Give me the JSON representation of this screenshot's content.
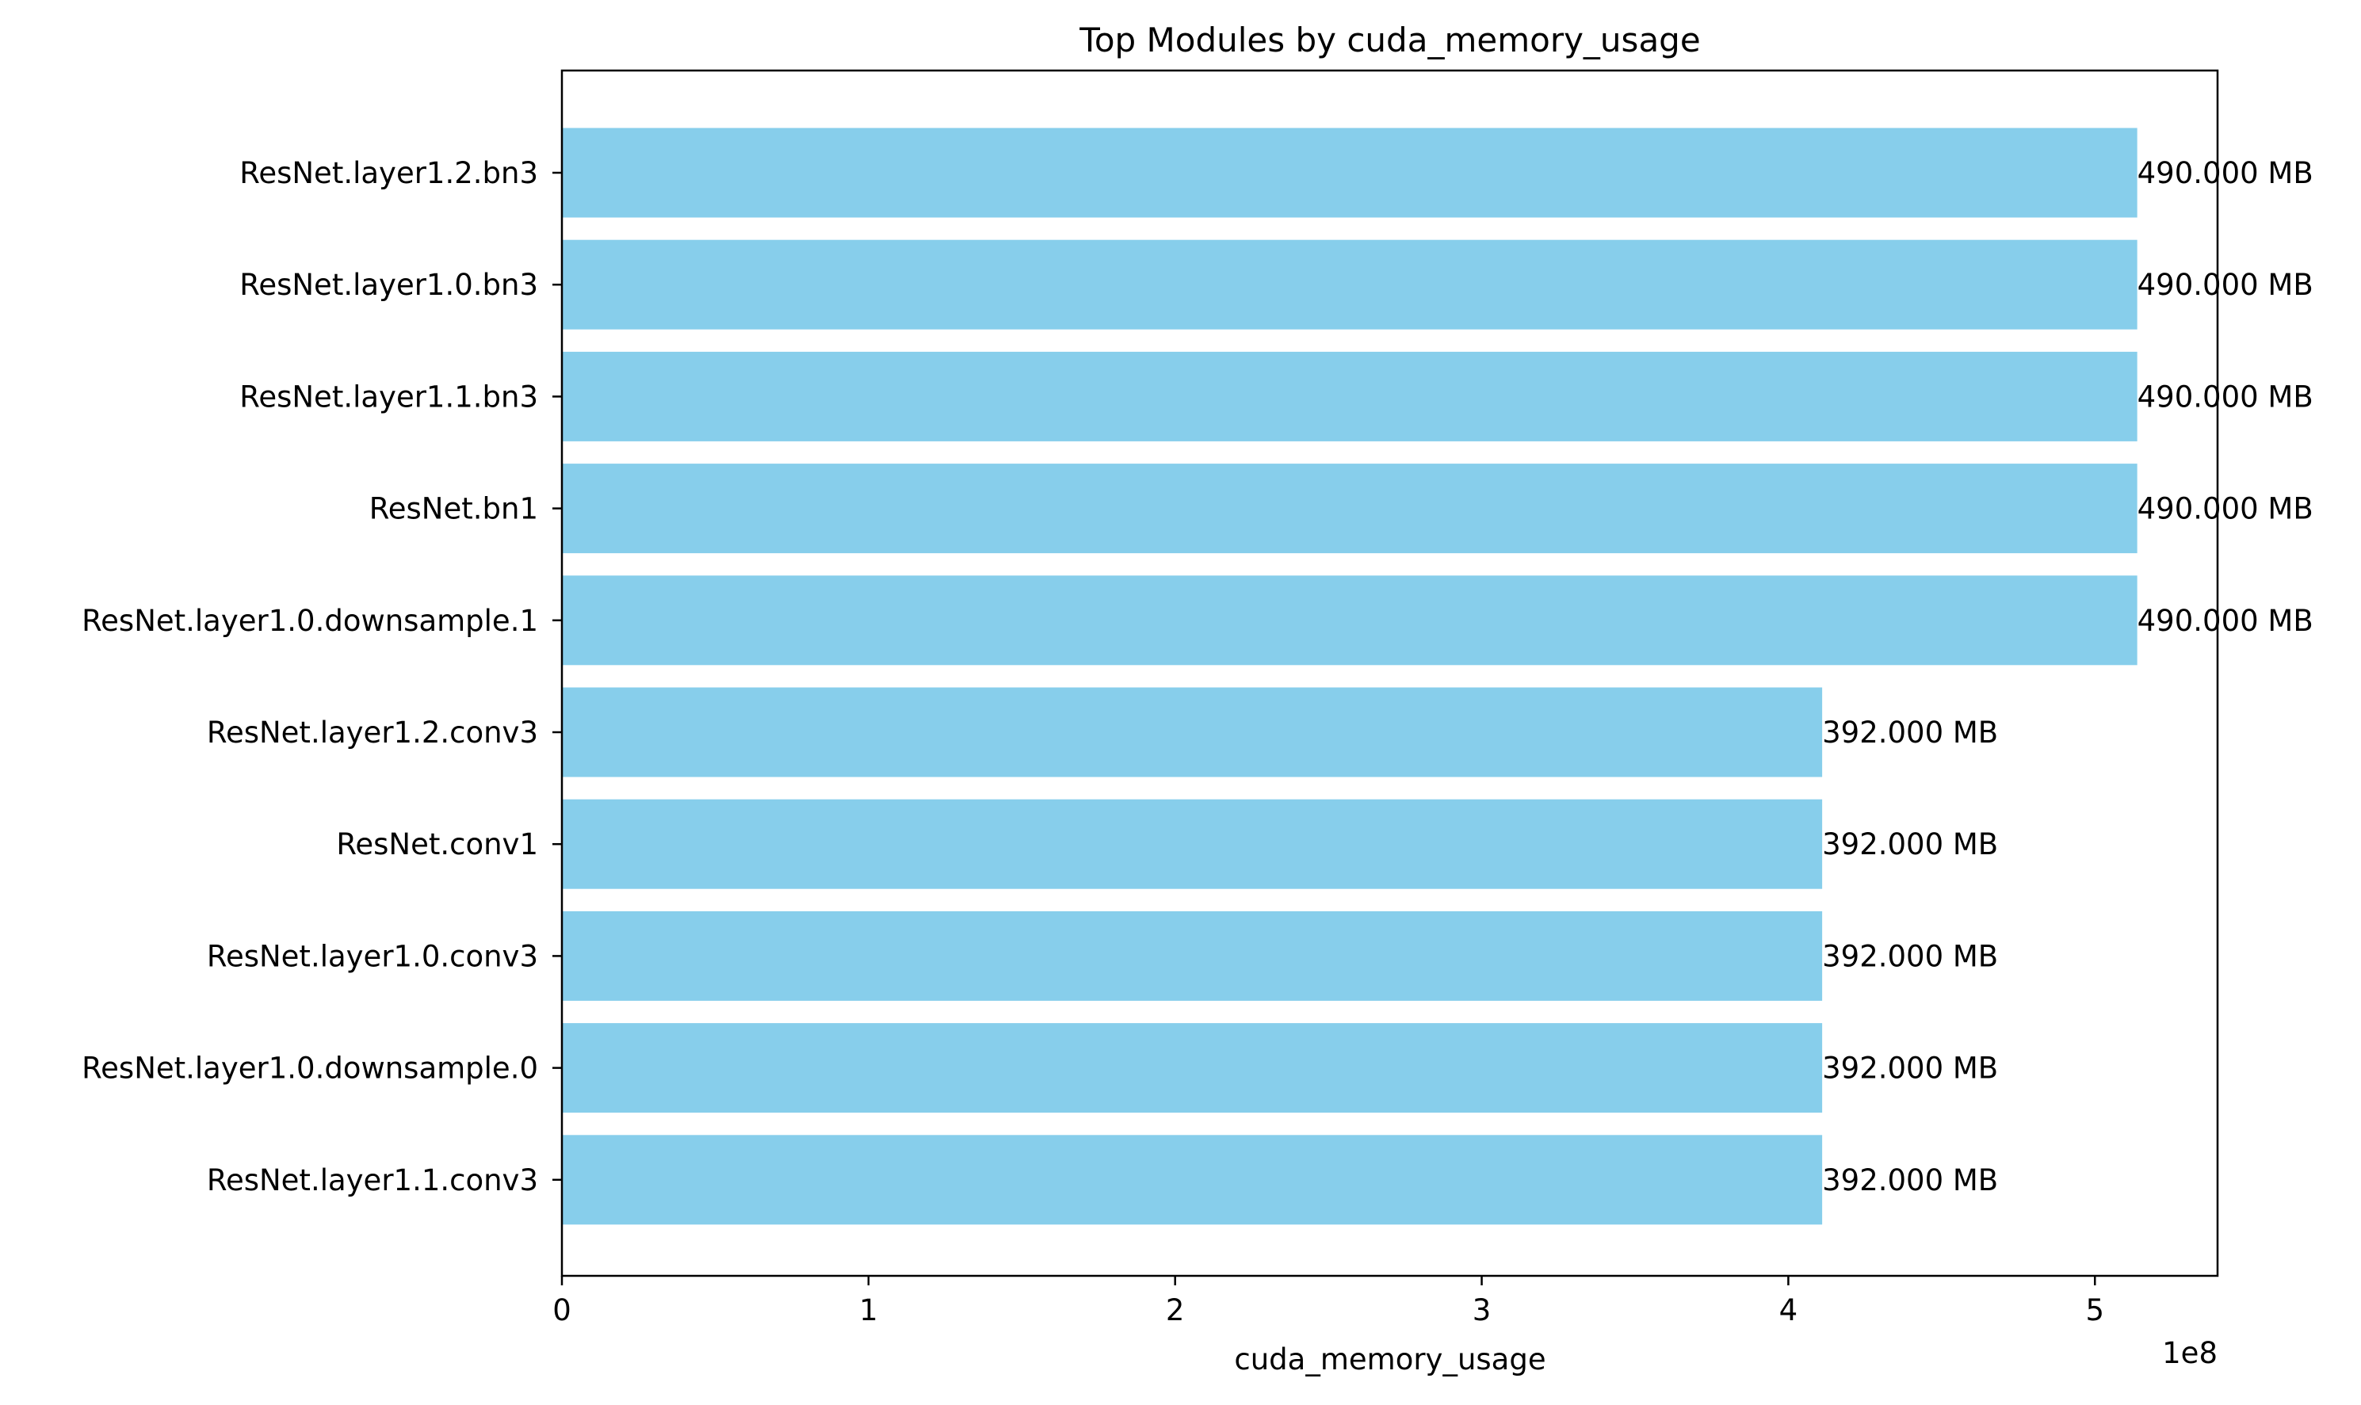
{
  "chart_data": {
    "type": "bar",
    "orientation": "horizontal",
    "title": "Top Modules by cuda_memory_usage",
    "xlabel": "cuda_memory_usage",
    "ylabel": "",
    "x_offset_label": "1e8",
    "xlim": [
      0,
      540000000
    ],
    "xticks": [
      0,
      100000000,
      200000000,
      300000000,
      400000000,
      500000000
    ],
    "xtick_labels": [
      "0",
      "1",
      "2",
      "3",
      "4",
      "5"
    ],
    "categories": [
      "ResNet.layer1.2.bn3",
      "ResNet.layer1.0.bn3",
      "ResNet.layer1.1.bn3",
      "ResNet.bn1",
      "ResNet.layer1.0.downsample.1",
      "ResNet.layer1.2.conv3",
      "ResNet.conv1",
      "ResNet.layer1.0.conv3",
      "ResNet.layer1.0.downsample.0",
      "ResNet.layer1.1.conv3"
    ],
    "values": [
      513802240,
      513802240,
      513802240,
      513802240,
      513802240,
      411041792,
      411041792,
      411041792,
      411041792,
      411041792
    ],
    "data_labels": [
      "490.000 MB",
      "490.000 MB",
      "490.000 MB",
      "490.000 MB",
      "490.000 MB",
      "392.000 MB",
      "392.000 MB",
      "392.000 MB",
      "392.000 MB",
      "392.000 MB"
    ],
    "bar_color": "#87CEEB",
    "grid": false,
    "legend": "none"
  }
}
